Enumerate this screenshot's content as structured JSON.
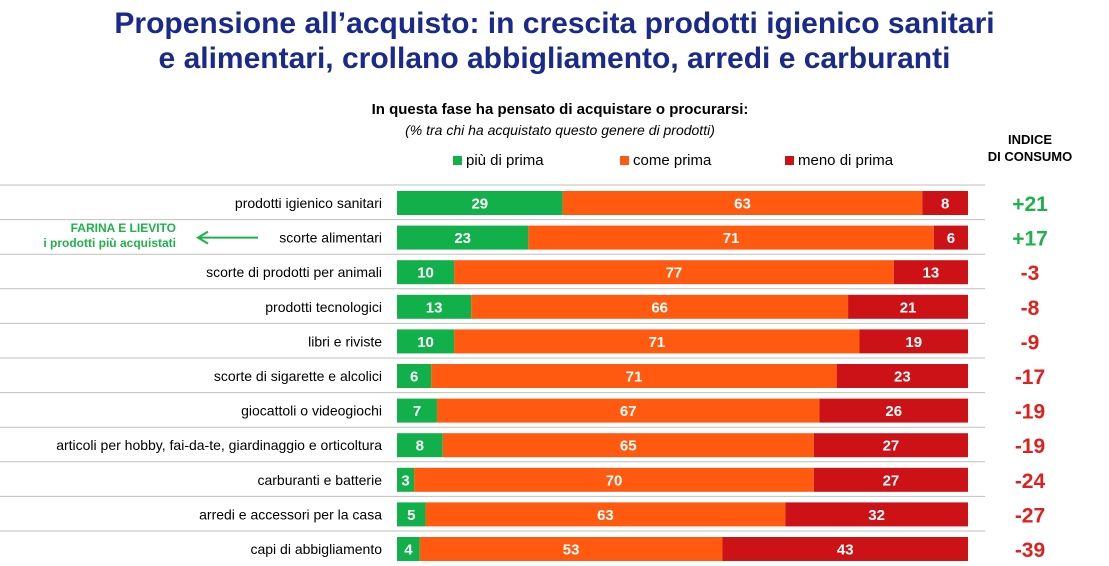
{
  "header": {
    "title_line1": "Propensione all’acquisto: in crescita prodotti igienico sanitari",
    "title_line2": "e alimentari, crollano abbigliamento, arredi e carburanti",
    "subtitle": "In questa fase ha pensato di acquistare o procurarsi:",
    "note": "(% tra chi ha acquistato questo genere di prodotti)",
    "index_heading_line1": "INDICE",
    "index_heading_line2": "DI CONSUMO"
  },
  "callout": {
    "line1": "FARINA E LIEVITO",
    "line2": "i prodotti più acquistati",
    "row": "scorte alimentari"
  },
  "colors": {
    "title": "#1a2a8c",
    "piu": "#12b04a",
    "come": "#ff5a0f",
    "meno": "#cc1216",
    "positive_index": "#1db34a",
    "negative_index": "#e0201c"
  },
  "chart_data": {
    "type": "bar",
    "orientation": "horizontal",
    "stacked": true,
    "legend_position": "top",
    "categories": [
      "prodotti igienico sanitari",
      "scorte alimentari",
      "scorte di prodotti per animali",
      "prodotti tecnologici",
      "libri e riviste",
      "scorte di sigarette e alcolici",
      "giocattoli o videogiochi",
      "articoli per hobby, fai-da-te, giardinaggio e orticoltura",
      "carburanti e batterie",
      "arredi e accessori per la casa",
      "capi di abbigliamento"
    ],
    "series": [
      {
        "name": "più di prima",
        "color": "#12b04a",
        "values": [
          29,
          23,
          10,
          13,
          10,
          6,
          7,
          8,
          3,
          5,
          4
        ]
      },
      {
        "name": "come prima",
        "color": "#ff5a0f",
        "values": [
          63,
          71,
          77,
          66,
          71,
          71,
          67,
          65,
          70,
          63,
          53
        ]
      },
      {
        "name": "meno di prima",
        "color": "#cc1216",
        "values": [
          8,
          6,
          13,
          21,
          19,
          23,
          26,
          27,
          27,
          32,
          43
        ]
      }
    ],
    "indice_di_consumo": [
      "+21",
      "+17",
      "-3",
      "-8",
      "-9",
      "-17",
      "-19",
      "-19",
      "-24",
      "-27",
      "-39"
    ]
  }
}
